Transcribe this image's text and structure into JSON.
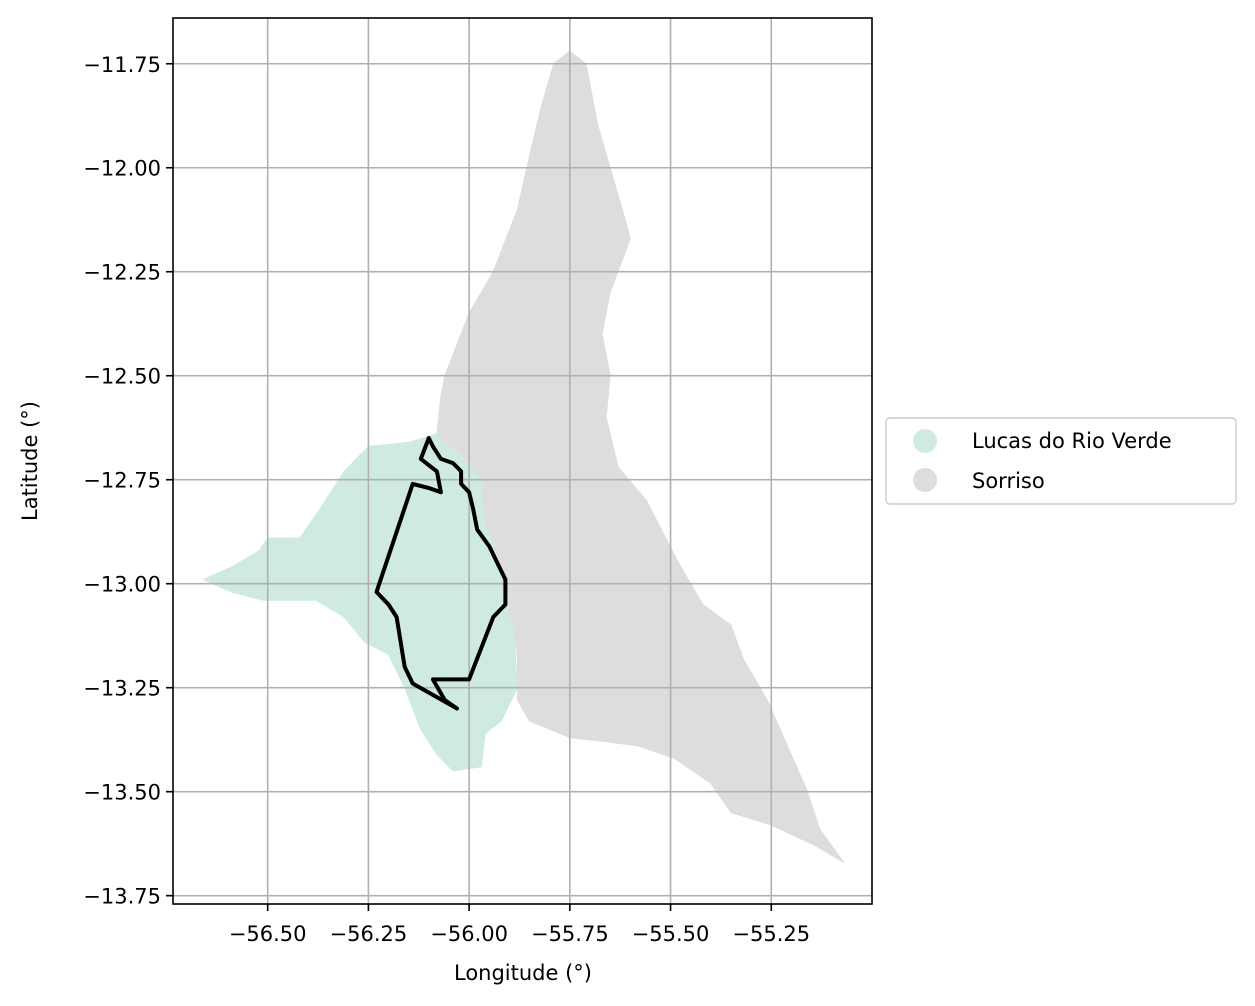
{
  "chart_data": {
    "type": "map",
    "xlabel": "Longitude (°)",
    "ylabel": "Latitude (°)",
    "xlim": [
      -56.735,
      -55.0
    ],
    "ylim": [
      -13.77,
      -11.64
    ],
    "grid": true,
    "legend_placement": "center-right, outside plot",
    "xticks": [
      -56.5,
      -56.25,
      -56.0,
      -55.75,
      -55.5,
      -55.25
    ],
    "xtick_labels": [
      "−56.50",
      "−56.25",
      "−56.00",
      "−55.75",
      "−55.50",
      "−55.25"
    ],
    "yticks": [
      -11.75,
      -12.0,
      -12.25,
      -12.5,
      -12.75,
      -13.0,
      -13.25,
      -13.5,
      -13.75
    ],
    "ytick_labels": [
      "−11.75",
      "−12.00",
      "−12.25",
      "−12.50",
      "−12.75",
      "−13.00",
      "−13.25",
      "−13.50",
      "−13.75"
    ],
    "regions": [
      {
        "name": "Lucas do Rio Verde",
        "color": "#cfebdf",
        "polygon": [
          [
            -56.08,
            -12.64
          ],
          [
            -56.02,
            -12.69
          ],
          [
            -55.99,
            -12.72
          ],
          [
            -55.97,
            -12.75
          ],
          [
            -55.96,
            -12.85
          ],
          [
            -55.93,
            -12.93
          ],
          [
            -55.92,
            -12.99
          ],
          [
            -55.91,
            -13.04
          ],
          [
            -55.89,
            -13.1
          ],
          [
            -55.88,
            -13.25
          ],
          [
            -55.92,
            -13.33
          ],
          [
            -55.96,
            -13.36
          ],
          [
            -55.97,
            -13.44
          ],
          [
            -56.04,
            -13.45
          ],
          [
            -56.08,
            -13.41
          ],
          [
            -56.12,
            -13.35
          ],
          [
            -56.16,
            -13.25
          ],
          [
            -56.2,
            -13.17
          ],
          [
            -56.26,
            -13.14
          ],
          [
            -56.31,
            -13.08
          ],
          [
            -56.38,
            -13.04
          ],
          [
            -56.51,
            -13.04
          ],
          [
            -56.59,
            -13.02
          ],
          [
            -56.66,
            -12.99
          ],
          [
            -56.59,
            -12.96
          ],
          [
            -56.52,
            -12.92
          ],
          [
            -56.5,
            -12.89
          ],
          [
            -56.42,
            -12.89
          ],
          [
            -56.37,
            -12.82
          ],
          [
            -56.31,
            -12.73
          ],
          [
            -56.25,
            -12.67
          ],
          [
            -56.15,
            -12.66
          ]
        ]
      },
      {
        "name": "Sorriso",
        "color": "#dddddd",
        "polygon": [
          [
            -55.75,
            -11.72
          ],
          [
            -55.71,
            -11.75
          ],
          [
            -55.68,
            -11.9
          ],
          [
            -55.65,
            -12.0
          ],
          [
            -55.62,
            -12.1
          ],
          [
            -55.6,
            -12.17
          ],
          [
            -55.65,
            -12.3
          ],
          [
            -55.67,
            -12.4
          ],
          [
            -55.65,
            -12.5
          ],
          [
            -55.66,
            -12.6
          ],
          [
            -55.63,
            -12.72
          ],
          [
            -55.56,
            -12.8
          ],
          [
            -55.48,
            -12.95
          ],
          [
            -55.42,
            -13.05
          ],
          [
            -55.35,
            -13.1
          ],
          [
            -55.32,
            -13.18
          ],
          [
            -55.26,
            -13.28
          ],
          [
            -55.21,
            -13.39
          ],
          [
            -55.16,
            -13.5
          ],
          [
            -55.13,
            -13.59
          ],
          [
            -55.07,
            -13.67
          ],
          [
            -55.14,
            -13.63
          ],
          [
            -55.25,
            -13.58
          ],
          [
            -55.35,
            -13.55
          ],
          [
            -55.4,
            -13.48
          ],
          [
            -55.49,
            -13.42
          ],
          [
            -55.58,
            -13.39
          ],
          [
            -55.66,
            -13.38
          ],
          [
            -55.75,
            -13.37
          ],
          [
            -55.85,
            -13.33
          ],
          [
            -55.88,
            -13.28
          ],
          [
            -55.88,
            -13.18
          ],
          [
            -55.89,
            -13.1
          ],
          [
            -55.91,
            -13.04
          ],
          [
            -55.92,
            -12.99
          ],
          [
            -55.93,
            -12.93
          ],
          [
            -55.96,
            -12.85
          ],
          [
            -55.97,
            -12.75
          ],
          [
            -55.99,
            -12.72
          ],
          [
            -56.02,
            -12.69
          ],
          [
            -56.08,
            -12.64
          ],
          [
            -56.07,
            -12.55
          ],
          [
            -56.06,
            -12.5
          ],
          [
            -56.0,
            -12.35
          ],
          [
            -55.94,
            -12.25
          ],
          [
            -55.88,
            -12.1
          ],
          [
            -55.85,
            -11.97
          ],
          [
            -55.82,
            -11.85
          ],
          [
            -55.79,
            -11.75
          ]
        ]
      }
    ],
    "outline": {
      "color": "#000000",
      "path": [
        [
          -56.1,
          -12.65
        ],
        [
          -56.09,
          -12.67
        ],
        [
          -56.07,
          -12.7
        ],
        [
          -56.04,
          -12.71
        ],
        [
          -56.02,
          -12.73
        ],
        [
          -56.02,
          -12.76
        ],
        [
          -56.0,
          -12.78
        ],
        [
          -55.99,
          -12.82
        ],
        [
          -55.98,
          -12.87
        ],
        [
          -55.95,
          -12.91
        ],
        [
          -55.93,
          -12.95
        ],
        [
          -55.91,
          -12.99
        ],
        [
          -55.91,
          -13.05
        ],
        [
          -55.94,
          -13.08
        ],
        [
          -56.0,
          -13.23
        ],
        [
          -56.09,
          -13.23
        ],
        [
          -56.06,
          -13.28
        ],
        [
          -56.03,
          -13.3
        ],
        [
          -56.14,
          -13.24
        ],
        [
          -56.16,
          -13.2
        ],
        [
          -56.18,
          -13.08
        ],
        [
          -56.2,
          -13.05
        ],
        [
          -56.23,
          -13.02
        ],
        [
          -56.14,
          -12.76
        ],
        [
          -56.1,
          -12.77
        ],
        [
          -56.07,
          -12.78
        ],
        [
          -56.08,
          -12.73
        ],
        [
          -56.12,
          -12.7
        ],
        [
          -56.1,
          -12.65
        ]
      ]
    },
    "legend": [
      {
        "label": "Lucas do Rio Verde",
        "color": "#cfebdf"
      },
      {
        "label": "Sorriso",
        "color": "#dddddd"
      }
    ]
  }
}
